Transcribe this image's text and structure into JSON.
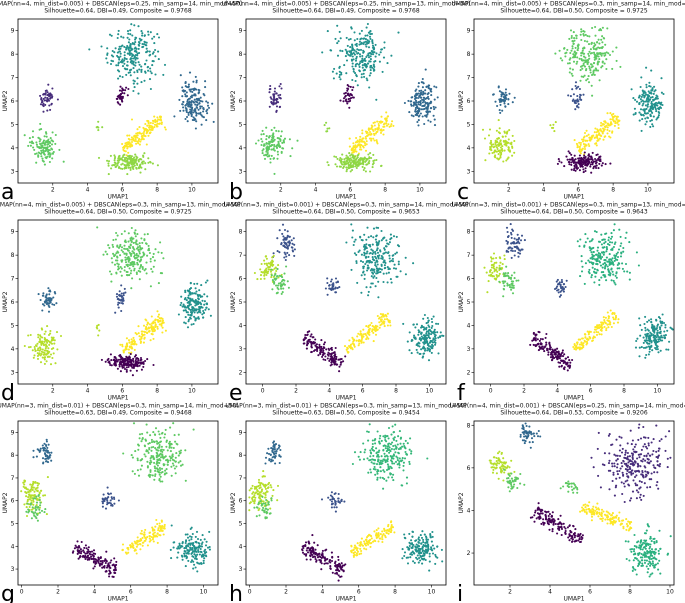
{
  "colors": {
    "c0": "#440154",
    "c1": "#3b528b",
    "c2": "#21918c",
    "c3": "#5ec962",
    "c4": "#fde725",
    "c5": "#2ab07f",
    "c6": "#8fd744",
    "c7": "#31688e",
    "c8": "#35b779",
    "c9": "#b5de2b",
    "c10": "#472d7b"
  },
  "chart_data": [
    {
      "type": "scatter",
      "panel_label": "a",
      "title": "UMAP(nn=4, min_dist=0.005) + DBSCAN(eps=0.25, min_samp=14, min_mod=50)",
      "subtitle": "Silhouette=0.64, DBI=0.49, Composite = 0.9768",
      "xlabel": "UMAP1",
      "ylabel": "UMAP2",
      "xlim": [
        0,
        11.5
      ],
      "ylim": [
        2.5,
        9.5
      ],
      "xticks": [
        2,
        4,
        6,
        8,
        10
      ],
      "yticks": [
        3,
        4,
        5,
        6,
        7,
        8,
        9
      ],
      "clusters": [
        {
          "shape": "blob",
          "cx": 6.6,
          "cy": 8.0,
          "rx": 1.3,
          "ry": 1.0,
          "n": 230,
          "color": "c2"
        },
        {
          "shape": "blob",
          "cx": 10.1,
          "cy": 5.9,
          "rx": 0.7,
          "ry": 0.8,
          "n": 170,
          "color": "c7"
        },
        {
          "shape": "blob",
          "cx": 1.7,
          "cy": 6.1,
          "rx": 0.4,
          "ry": 0.45,
          "n": 50,
          "color": "c10"
        },
        {
          "shape": "blob",
          "cx": 5.9,
          "cy": 6.2,
          "rx": 0.3,
          "ry": 0.5,
          "n": 35,
          "color": "c0"
        },
        {
          "shape": "blob",
          "cx": 1.5,
          "cy": 4.1,
          "rx": 0.7,
          "ry": 0.6,
          "n": 120,
          "color": "c3"
        },
        {
          "shape": "band",
          "x0": 6.0,
          "y0": 3.9,
          "x1": 8.3,
          "y1": 5.3,
          "w": 0.35,
          "n": 150,
          "color": "c4"
        },
        {
          "shape": "blob",
          "cx": 6.3,
          "cy": 3.4,
          "rx": 1.0,
          "ry": 0.3,
          "n": 170,
          "color": "c6"
        },
        {
          "shape": "blob",
          "cx": 4.6,
          "cy": 4.9,
          "rx": 0.15,
          "ry": 0.25,
          "n": 6,
          "color": "c6"
        }
      ]
    },
    {
      "type": "scatter",
      "panel_label": "b",
      "title": "UMAP(nn=4, min_dist=0.005) + DBSCAN(eps=0.25, min_samp=13, min_mod=50)",
      "subtitle": "Silhouette=0.64, DBI=0.49, Composite = 0.9768",
      "xlabel": "UMAP1",
      "ylabel": "UMAP2",
      "xlim": [
        0,
        11.5
      ],
      "ylim": [
        2.5,
        9.5
      ],
      "xticks": [
        2,
        4,
        6,
        8,
        10
      ],
      "yticks": [
        3,
        4,
        5,
        6,
        7,
        8,
        9
      ],
      "clusters": [
        {
          "shape": "blob",
          "cx": 6.6,
          "cy": 8.0,
          "rx": 1.3,
          "ry": 1.0,
          "n": 230,
          "color": "c2"
        },
        {
          "shape": "blob",
          "cx": 10.1,
          "cy": 5.9,
          "rx": 0.7,
          "ry": 0.8,
          "n": 170,
          "color": "c7"
        },
        {
          "shape": "blob",
          "cx": 1.7,
          "cy": 6.1,
          "rx": 0.4,
          "ry": 0.45,
          "n": 50,
          "color": "c10"
        },
        {
          "shape": "blob",
          "cx": 5.9,
          "cy": 6.2,
          "rx": 0.3,
          "ry": 0.5,
          "n": 35,
          "color": "c0"
        },
        {
          "shape": "blob",
          "cx": 1.5,
          "cy": 4.1,
          "rx": 0.7,
          "ry": 0.6,
          "n": 120,
          "color": "c3"
        },
        {
          "shape": "band",
          "x0": 6.0,
          "y0": 3.9,
          "x1": 8.3,
          "y1": 5.3,
          "w": 0.35,
          "n": 150,
          "color": "c4"
        },
        {
          "shape": "blob",
          "cx": 6.3,
          "cy": 3.4,
          "rx": 1.0,
          "ry": 0.3,
          "n": 170,
          "color": "c6"
        },
        {
          "shape": "blob",
          "cx": 4.6,
          "cy": 4.9,
          "rx": 0.15,
          "ry": 0.25,
          "n": 6,
          "color": "c6"
        }
      ]
    },
    {
      "type": "scatter",
      "panel_label": "c",
      "title": "UMAP(nn=4, min_dist=0.005) + DBSCAN(eps=0.3, min_samp=14, min_mod=50)",
      "subtitle": "Silhouette=0.64, DBI=0.50, Composite = 0.9725",
      "xlabel": "UMAP1",
      "ylabel": "UMAP2",
      "xlim": [
        0,
        11.5
      ],
      "ylim": [
        2.5,
        9.5
      ],
      "xticks": [
        2,
        4,
        6,
        8,
        10
      ],
      "yticks": [
        3,
        4,
        5,
        6,
        7,
        8,
        9
      ],
      "clusters": [
        {
          "shape": "blob",
          "cx": 6.6,
          "cy": 8.0,
          "rx": 1.3,
          "ry": 1.0,
          "n": 230,
          "color": "c3"
        },
        {
          "shape": "blob",
          "cx": 10.1,
          "cy": 5.9,
          "rx": 0.7,
          "ry": 0.8,
          "n": 170,
          "color": "c2"
        },
        {
          "shape": "blob",
          "cx": 1.7,
          "cy": 6.1,
          "rx": 0.4,
          "ry": 0.45,
          "n": 50,
          "color": "c7"
        },
        {
          "shape": "blob",
          "cx": 5.9,
          "cy": 6.2,
          "rx": 0.3,
          "ry": 0.5,
          "n": 35,
          "color": "c1"
        },
        {
          "shape": "blob",
          "cx": 1.5,
          "cy": 4.1,
          "rx": 0.7,
          "ry": 0.6,
          "n": 120,
          "color": "c9"
        },
        {
          "shape": "band",
          "x0": 6.0,
          "y0": 3.9,
          "x1": 8.3,
          "y1": 5.3,
          "w": 0.35,
          "n": 150,
          "color": "c4"
        },
        {
          "shape": "blob",
          "cx": 6.3,
          "cy": 3.4,
          "rx": 1.0,
          "ry": 0.3,
          "n": 170,
          "color": "c0"
        },
        {
          "shape": "blob",
          "cx": 4.6,
          "cy": 4.9,
          "rx": 0.15,
          "ry": 0.25,
          "n": 6,
          "color": "c9"
        }
      ]
    },
    {
      "type": "scatter",
      "panel_label": "d",
      "title": "UMAP(nn=4, min_dist=0.005) + DBSCAN(eps=0.3, min_samp=13, min_mod=50)",
      "subtitle": "Silhouette=0.64, DBI=0.50, Composite = 0.9725",
      "xlabel": "UMAP1",
      "ylabel": "UMAP2",
      "xlim": [
        0,
        11.5
      ],
      "ylim": [
        2.5,
        9.5
      ],
      "xticks": [
        2,
        4,
        6,
        8,
        10
      ],
      "yticks": [
        3,
        4,
        5,
        6,
        7,
        8,
        9
      ],
      "clusters": [
        {
          "shape": "blob",
          "cx": 6.6,
          "cy": 8.0,
          "rx": 1.3,
          "ry": 1.0,
          "n": 230,
          "color": "c3"
        },
        {
          "shape": "blob",
          "cx": 10.1,
          "cy": 5.9,
          "rx": 0.7,
          "ry": 0.8,
          "n": 170,
          "color": "c2"
        },
        {
          "shape": "blob",
          "cx": 1.7,
          "cy": 6.1,
          "rx": 0.4,
          "ry": 0.45,
          "n": 50,
          "color": "c7"
        },
        {
          "shape": "blob",
          "cx": 5.9,
          "cy": 6.2,
          "rx": 0.3,
          "ry": 0.5,
          "n": 35,
          "color": "c1"
        },
        {
          "shape": "blob",
          "cx": 1.5,
          "cy": 4.1,
          "rx": 0.7,
          "ry": 0.6,
          "n": 120,
          "color": "c9"
        },
        {
          "shape": "band",
          "x0": 6.0,
          "y0": 3.9,
          "x1": 8.3,
          "y1": 5.3,
          "w": 0.35,
          "n": 150,
          "color": "c4"
        },
        {
          "shape": "blob",
          "cx": 6.3,
          "cy": 3.4,
          "rx": 1.0,
          "ry": 0.3,
          "n": 170,
          "color": "c0"
        },
        {
          "shape": "blob",
          "cx": 4.6,
          "cy": 4.9,
          "rx": 0.15,
          "ry": 0.25,
          "n": 6,
          "color": "c9"
        }
      ]
    },
    {
      "type": "scatter",
      "panel_label": "e",
      "title": "UMAP(nn=3, min_dist=0.001) + DBSCAN(eps=0.3, min_samp=14, min_mod=50)",
      "subtitle": "Silhouette=0.64, DBI=0.50, Composite = 0.9653",
      "xlabel": "UMAP1",
      "ylabel": "UMAP2",
      "xlim": [
        -1,
        11
      ],
      "ylim": [
        1.5,
        8.5
      ],
      "xticks": [
        0,
        2,
        4,
        6,
        8,
        10
      ],
      "yticks": [
        2,
        3,
        4,
        5,
        6,
        7,
        8
      ],
      "clusters": [
        {
          "shape": "blob",
          "cx": 6.8,
          "cy": 6.9,
          "rx": 1.2,
          "ry": 1.1,
          "n": 230,
          "color": "c2"
        },
        {
          "shape": "blob",
          "cx": 9.8,
          "cy": 3.5,
          "rx": 0.8,
          "ry": 0.7,
          "n": 170,
          "color": "c2"
        },
        {
          "shape": "blob",
          "cx": 1.4,
          "cy": 7.5,
          "rx": 0.5,
          "ry": 0.6,
          "n": 60,
          "color": "c1"
        },
        {
          "shape": "blob",
          "cx": 0.3,
          "cy": 6.4,
          "rx": 0.5,
          "ry": 0.5,
          "n": 60,
          "color": "c9"
        },
        {
          "shape": "blob",
          "cx": 1.0,
          "cy": 5.9,
          "rx": 0.5,
          "ry": 0.5,
          "n": 50,
          "color": "c3"
        },
        {
          "shape": "blob",
          "cx": 4.2,
          "cy": 5.7,
          "rx": 0.4,
          "ry": 0.3,
          "n": 35,
          "color": "c1"
        },
        {
          "shape": "band",
          "x0": 5.0,
          "y0": 3.0,
          "x1": 7.6,
          "y1": 4.4,
          "w": 0.3,
          "n": 130,
          "color": "c4"
        },
        {
          "shape": "band",
          "x0": 2.5,
          "y0": 3.5,
          "x1": 4.8,
          "y1": 2.3,
          "w": 0.35,
          "n": 150,
          "color": "c0"
        }
      ]
    },
    {
      "type": "scatter",
      "panel_label": "f",
      "title": "UMAP(nn=3, min_dist=0.001) + DBSCAN(eps=0.3, min_samp=13, min_mod=50)",
      "subtitle": "Silhouette=0.64, DBI=0.50, Composite = 0.9643",
      "xlabel": "UMAP1",
      "ylabel": "UMAP2",
      "xlim": [
        -1,
        11
      ],
      "ylim": [
        1.5,
        8.5
      ],
      "xticks": [
        0,
        2,
        4,
        6,
        8,
        10
      ],
      "yticks": [
        2,
        3,
        4,
        5,
        6,
        7,
        8
      ],
      "clusters": [
        {
          "shape": "blob",
          "cx": 6.8,
          "cy": 6.9,
          "rx": 1.2,
          "ry": 1.1,
          "n": 230,
          "color": "c5"
        },
        {
          "shape": "blob",
          "cx": 9.8,
          "cy": 3.5,
          "rx": 0.8,
          "ry": 0.7,
          "n": 170,
          "color": "c2"
        },
        {
          "shape": "blob",
          "cx": 1.4,
          "cy": 7.5,
          "rx": 0.5,
          "ry": 0.6,
          "n": 60,
          "color": "c1"
        },
        {
          "shape": "blob",
          "cx": 0.3,
          "cy": 6.4,
          "rx": 0.5,
          "ry": 0.5,
          "n": 60,
          "color": "c9"
        },
        {
          "shape": "blob",
          "cx": 1.0,
          "cy": 5.9,
          "rx": 0.5,
          "ry": 0.5,
          "n": 50,
          "color": "c3"
        },
        {
          "shape": "blob",
          "cx": 4.2,
          "cy": 5.7,
          "rx": 0.4,
          "ry": 0.3,
          "n": 35,
          "color": "c1"
        },
        {
          "shape": "band",
          "x0": 5.0,
          "y0": 3.0,
          "x1": 7.6,
          "y1": 4.4,
          "w": 0.3,
          "n": 130,
          "color": "c4"
        },
        {
          "shape": "band",
          "x0": 2.5,
          "y0": 3.5,
          "x1": 4.8,
          "y1": 2.3,
          "w": 0.35,
          "n": 150,
          "color": "c0"
        }
      ]
    },
    {
      "type": "scatter",
      "panel_label": "g",
      "title": "UMAP(nn=3, min_dist=0.01) + DBSCAN(eps=0.3, min_samp=14, min_mod=50)",
      "subtitle": "Silhouette=0.63, DBI=0.49, Composite = 0.9468",
      "xlabel": "UMAP1",
      "ylabel": "UMAP2",
      "xlim": [
        -0.2,
        10.8
      ],
      "ylim": [
        2.3,
        9.5
      ],
      "xticks": [
        0,
        2,
        4,
        6,
        8,
        10
      ],
      "yticks": [
        3,
        4,
        5,
        6,
        7,
        8,
        9
      ],
      "clusters": [
        {
          "shape": "blob",
          "cx": 7.6,
          "cy": 8.0,
          "rx": 1.3,
          "ry": 1.1,
          "n": 230,
          "color": "c3"
        },
        {
          "shape": "blob",
          "cx": 9.4,
          "cy": 3.9,
          "rx": 0.8,
          "ry": 0.6,
          "n": 170,
          "color": "c2"
        },
        {
          "shape": "blob",
          "cx": 1.3,
          "cy": 8.1,
          "rx": 0.4,
          "ry": 0.5,
          "n": 50,
          "color": "c7"
        },
        {
          "shape": "blob",
          "cx": 0.6,
          "cy": 6.3,
          "rx": 0.6,
          "ry": 0.7,
          "n": 100,
          "color": "c9"
        },
        {
          "shape": "blob",
          "cx": 0.8,
          "cy": 5.6,
          "rx": 0.4,
          "ry": 0.5,
          "n": 40,
          "color": "c3"
        },
        {
          "shape": "blob",
          "cx": 4.7,
          "cy": 6.0,
          "rx": 0.4,
          "ry": 0.35,
          "n": 35,
          "color": "c1"
        },
        {
          "shape": "band",
          "x0": 5.6,
          "y0": 3.7,
          "x1": 7.9,
          "y1": 4.9,
          "w": 0.3,
          "n": 120,
          "color": "c4"
        },
        {
          "shape": "band",
          "x0": 2.9,
          "y0": 4.0,
          "x1": 5.2,
          "y1": 2.9,
          "w": 0.35,
          "n": 150,
          "color": "c0"
        }
      ]
    },
    {
      "type": "scatter",
      "panel_label": "h",
      "title": "UMAP(nn=3, min_dist=0.01) + DBSCAN(eps=0.3, min_samp=13, min_mod=50)",
      "subtitle": "Silhouette=0.63, DBI=0.50, Composite = 0.9454",
      "xlabel": "UMAP1",
      "ylabel": "UMAP2",
      "xlim": [
        -0.2,
        10.8
      ],
      "ylim": [
        2.3,
        9.5
      ],
      "xticks": [
        0,
        2,
        4,
        6,
        8,
        10
      ],
      "yticks": [
        3,
        4,
        5,
        6,
        7,
        8,
        9
      ],
      "clusters": [
        {
          "shape": "blob",
          "cx": 7.6,
          "cy": 8.0,
          "rx": 1.3,
          "ry": 1.1,
          "n": 230,
          "color": "c8"
        },
        {
          "shape": "blob",
          "cx": 9.4,
          "cy": 3.9,
          "rx": 0.8,
          "ry": 0.6,
          "n": 170,
          "color": "c2"
        },
        {
          "shape": "blob",
          "cx": 1.3,
          "cy": 8.1,
          "rx": 0.4,
          "ry": 0.5,
          "n": 50,
          "color": "c7"
        },
        {
          "shape": "blob",
          "cx": 0.6,
          "cy": 6.3,
          "rx": 0.6,
          "ry": 0.7,
          "n": 100,
          "color": "c9"
        },
        {
          "shape": "blob",
          "cx": 0.8,
          "cy": 5.6,
          "rx": 0.4,
          "ry": 0.5,
          "n": 40,
          "color": "c3"
        },
        {
          "shape": "blob",
          "cx": 4.7,
          "cy": 6.0,
          "rx": 0.4,
          "ry": 0.35,
          "n": 35,
          "color": "c1"
        },
        {
          "shape": "band",
          "x0": 5.6,
          "y0": 3.7,
          "x1": 7.9,
          "y1": 4.9,
          "w": 0.3,
          "n": 120,
          "color": "c4"
        },
        {
          "shape": "band",
          "x0": 2.9,
          "y0": 4.0,
          "x1": 5.2,
          "y1": 2.9,
          "w": 0.35,
          "n": 150,
          "color": "c0"
        }
      ]
    },
    {
      "type": "scatter",
      "panel_label": "i",
      "title": "UMAP(nn=4, min_dist=0.001) + DBSCAN(eps=0.25, min_samp=14, min_mod=50)",
      "subtitle": "Silhouette=0.64, DBI=0.53, Composite = 0.9206",
      "xlabel": "UMAP1",
      "ylabel": "UMAP2",
      "xlim": [
        0.2,
        10.2
      ],
      "ylim": [
        0.5,
        8.2
      ],
      "xticks": [
        2,
        4,
        6,
        8,
        10
      ],
      "yticks": [
        2,
        4,
        6,
        8
      ],
      "clusters": [
        {
          "shape": "blob",
          "cx": 8.3,
          "cy": 6.2,
          "rx": 1.4,
          "ry": 1.3,
          "n": 260,
          "color": "c10"
        },
        {
          "shape": "blob",
          "cx": 8.8,
          "cy": 2.0,
          "rx": 0.8,
          "ry": 0.9,
          "n": 170,
          "color": "c5"
        },
        {
          "shape": "blob",
          "cx": 2.9,
          "cy": 7.6,
          "rx": 0.4,
          "ry": 0.4,
          "n": 50,
          "color": "c7"
        },
        {
          "shape": "blob",
          "cx": 1.5,
          "cy": 6.1,
          "rx": 0.5,
          "ry": 0.5,
          "n": 70,
          "color": "c9"
        },
        {
          "shape": "blob",
          "cx": 2.1,
          "cy": 5.4,
          "rx": 0.4,
          "ry": 0.4,
          "n": 40,
          "color": "c3"
        },
        {
          "shape": "blob",
          "cx": 5.1,
          "cy": 5.1,
          "rx": 0.35,
          "ry": 0.3,
          "n": 25,
          "color": "c3"
        },
        {
          "shape": "band",
          "x0": 5.6,
          "y0": 4.2,
          "x1": 8.1,
          "y1": 3.2,
          "w": 0.3,
          "n": 130,
          "color": "c4"
        },
        {
          "shape": "band",
          "x0": 3.2,
          "y0": 4.0,
          "x1": 5.6,
          "y1": 2.6,
          "w": 0.35,
          "n": 150,
          "color": "c0"
        }
      ]
    }
  ]
}
